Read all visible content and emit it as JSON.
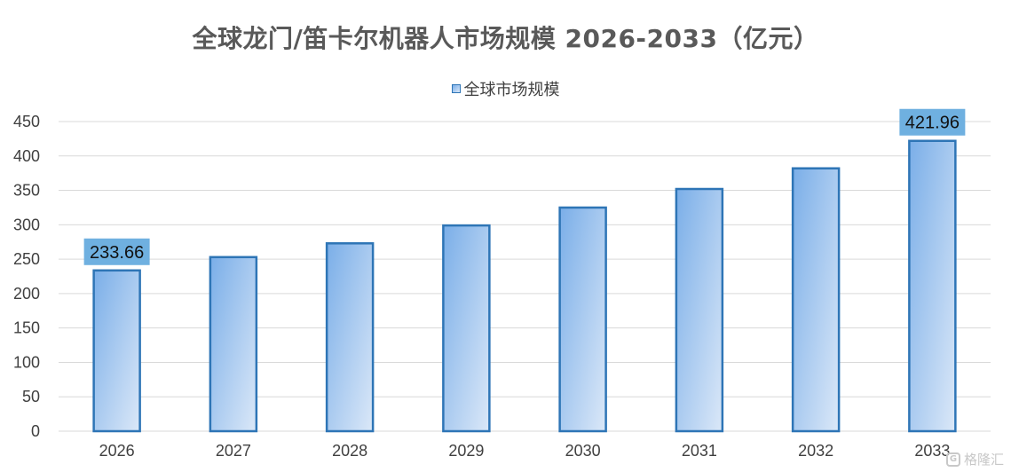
{
  "chart_data": {
    "type": "bar",
    "title": "全球龙门/笛卡尔机器人市场规模 2026-2033（亿元）",
    "categories": [
      "2026",
      "2027",
      "2028",
      "2029",
      "2030",
      "2031",
      "2032",
      "2033"
    ],
    "series": [
      {
        "name": "全球市场规模",
        "values": [
          233.66,
          253,
          273,
          299,
          325,
          352,
          382,
          421.96
        ]
      }
    ],
    "data_labels": [
      {
        "index": 0,
        "text": "233.66"
      },
      {
        "index": 7,
        "text": "421.96"
      }
    ],
    "y_ticks": [
      "0",
      "50",
      "100",
      "150",
      "200",
      "250",
      "300",
      "350",
      "400",
      "450"
    ],
    "ylim": [
      0,
      450
    ],
    "grid": true,
    "legend": "top-center",
    "colors": {
      "bar_border": "#2e75b6",
      "bar_fill_top": "#7aaee8",
      "bar_fill_bottom": "#dbe8f8",
      "label_bg": "#6fb0e0",
      "grid": "#d9d9d9",
      "title": "#595959"
    }
  },
  "watermark": {
    "icon": "gelonghui-logo-icon",
    "text": "格隆汇"
  }
}
